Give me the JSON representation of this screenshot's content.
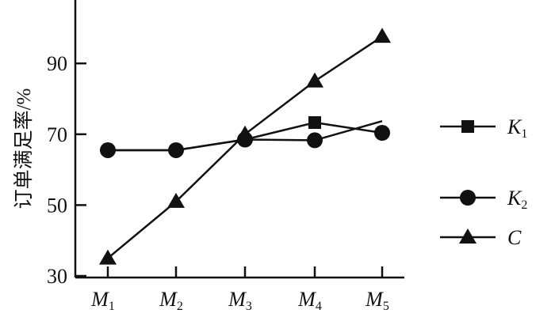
{
  "chart_data": {
    "type": "line",
    "ylabel": "订单满足率/%",
    "xlabel": "",
    "categories": [
      "M1",
      "M2",
      "M3",
      "M4",
      "M5"
    ],
    "ylim": [
      30,
      100
    ],
    "yticks": [
      30,
      50,
      70,
      90
    ],
    "grid": false,
    "legend_position": "right",
    "series": [
      {
        "name": "K1",
        "values": [
          65.5,
          65.5,
          68.5,
          73.3,
          70.4
        ],
        "markers": [
          "none",
          "none",
          "none",
          "square",
          "circle"
        ]
      },
      {
        "name": "K2",
        "values": [
          65.5,
          65.5,
          68.5,
          68.3,
          73.7
        ],
        "markers": [
          "circle",
          "circle",
          "circle",
          "circle",
          "none"
        ]
      },
      {
        "name": "C",
        "values": [
          35,
          51,
          70,
          85,
          97.6
        ],
        "markers": [
          "triangle",
          "triangle",
          "triangle",
          "triangle",
          "triangle"
        ]
      }
    ],
    "legend": [
      {
        "main": "K",
        "sub": "1",
        "marker": "square"
      },
      {
        "main": "K",
        "sub": "2",
        "marker": "circle"
      },
      {
        "main": "C",
        "sub": "",
        "marker": "triangle"
      }
    ],
    "line_color": "#111111"
  }
}
